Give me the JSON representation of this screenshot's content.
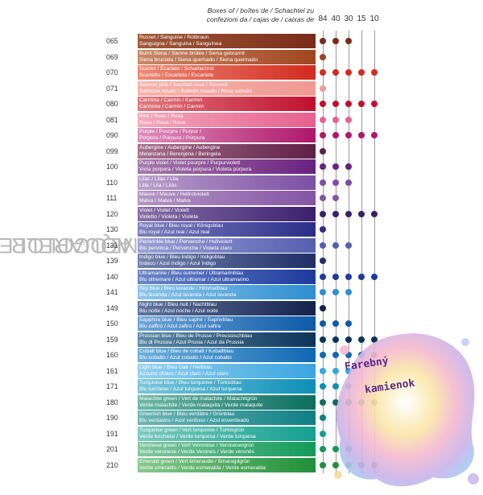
{
  "brand": {
    "name": "NEOCOLOR",
    "reg": "®",
    "suffix": " II AQUARELLE"
  },
  "header": {
    "line1": "Boxes of / boîtes de / Schachtel zu",
    "line2": "confezioni da / cajas de / caixas de"
  },
  "box_sizes": [
    "84",
    "40",
    "30",
    "15",
    "10"
  ],
  "watermark": {
    "line1": "Farebný",
    "line2": "kamienok"
  },
  "colors": [
    {
      "code": "065",
      "l1": "Russet / Sanguine / Rotbraun",
      "l2": "Sanguigna / Sanguina / Sanguínea",
      "c1": "#a05a3a",
      "c2": "#7a2b18",
      "boxes": [
        1,
        1,
        1,
        0,
        0
      ]
    },
    {
      "code": "069",
      "l1": "Burnt Siena / Sienne brûlée / Siena gebrannt",
      "l2": "Siena bruciata / Siena quemado / Siena queimado",
      "c1": "#c98a6a",
      "c2": "#a0451f",
      "boxes": [
        1,
        0,
        0,
        0,
        0
      ]
    },
    {
      "code": "070",
      "l1": "Scarlet / Écarlate / Scharlachrot",
      "l2": "Scarlatto / Escarlata / Escarlate",
      "c1": "#ec8a75",
      "c2": "#d32a20",
      "boxes": [
        1,
        1,
        1,
        1,
        1
      ]
    },
    {
      "code": "071",
      "l1": "Salmon pink / Saumon rosé / Rosarot",
      "l2": "Salmone rosato / Salmón rosado / Rosa salmão",
      "c1": "#f5b3ad",
      "c2": "#ef9a93",
      "boxes": [
        1,
        0,
        0,
        0,
        0
      ]
    },
    {
      "code": "080",
      "l1": "Carmine / Carmin / Karmin",
      "l2": "Carminio / Carmín / Carmin",
      "c1": "#e07a80",
      "c2": "#c0102e",
      "boxes": [
        1,
        1,
        1,
        1,
        1
      ]
    },
    {
      "code": "081",
      "l1": "Pink / Rose / Rosa",
      "l2": "Rosa / Rosa / Rosa",
      "c1": "#f2a8bd",
      "c2": "#e8608f",
      "boxes": [
        1,
        1,
        1,
        0,
        0
      ]
    },
    {
      "code": "090",
      "l1": "Purple / Pourpre / Purpur /",
      "l2": "Porpora / Púrpura / Púrpura",
      "c1": "#de8fbf",
      "c2": "#b0176a",
      "boxes": [
        1,
        1,
        1,
        1,
        1
      ]
    },
    {
      "code": "099",
      "l1": "Aubergine / Aubergine / Aubergine",
      "l2": "Melanzana / Berenjena / Beringela",
      "c1": "#a8718f",
      "c2": "#5e1f45",
      "boxes": [
        1,
        0,
        0,
        0,
        0
      ]
    },
    {
      "code": "100",
      "l1": "Purple violet / Violet pourpre / Purpurviolett",
      "l2": "Viola porpora / Violeta púrpura / Violeta púrpura",
      "c1": "#a77aad",
      "c2": "#6a2080",
      "boxes": [
        1,
        1,
        1,
        0,
        0
      ]
    },
    {
      "code": "110",
      "l1": "Lilac / Lilas / Lila",
      "l2": "Lilla / Lila / Lilás",
      "c1": "#b9a0cc",
      "c2": "#7c4fa3",
      "boxes": [
        1,
        1,
        1,
        0,
        0
      ]
    },
    {
      "code": "111",
      "l1": "Mauve / Mauve / Hellrotviolett",
      "l2": "Malva / Malva / Malva",
      "c1": "#b595c4",
      "c2": "#8455a5",
      "boxes": [
        1,
        1,
        0,
        0,
        0
      ]
    },
    {
      "code": "120",
      "l1": "Violet / Violet / Violett",
      "l2": "Violetto / Violeta / Violeta",
      "c1": "#8870a8",
      "c2": "#3b1f6e",
      "boxes": [
        1,
        1,
        1,
        1,
        1
      ]
    },
    {
      "code": "130",
      "l1": "Royal blue / Bleu royal / Königsblau",
      "l2": "Blu royal / Azul real / Azul real",
      "c1": "#7d82bf",
      "c2": "#2a2d88",
      "boxes": [
        1,
        0,
        0,
        0,
        0
      ]
    },
    {
      "code": "131",
      "l1": "Periwinkle blue / Pervenche / Hellviolett",
      "l2": "Blu pervinca / Pervenche / Violeta claro",
      "c1": "#9aa0d5",
      "c2": "#5560b0",
      "boxes": [
        1,
        1,
        1,
        0,
        0
      ]
    },
    {
      "code": "139",
      "l1": "Indigo blue / Bleu indigo / Indigoblau",
      "l2": "Indaco / Azul índigo / Azul índigo",
      "c1": "#7384b0",
      "c2": "#1f2f66",
      "boxes": [
        1,
        0,
        0,
        0,
        0
      ]
    },
    {
      "code": "140",
      "l1": "Ultramarine / Bleu outremer / Ultramarinblau",
      "l2": "Blu oltremare / Azul ultramar / Azul ultramarino",
      "c1": "#6b86c7",
      "c2": "#1d3a9e",
      "boxes": [
        1,
        1,
        1,
        1,
        1
      ]
    },
    {
      "code": "141",
      "l1": "Sky blue / Bleu lavande / Himmelblau",
      "l2": "Blu lavanda / Azul lavanda / Azul lavanda",
      "c1": "#8fc6ea",
      "c2": "#2d8fd0",
      "boxes": [
        1,
        1,
        1,
        0,
        0
      ]
    },
    {
      "code": "149",
      "l1": "Night blue / Bleu nuit / Nachtblau",
      "l2": "Blu notte / Azul noche / Azul noite",
      "c1": "#6076a0",
      "c2": "#14224d",
      "boxes": [
        1,
        0,
        0,
        0,
        0
      ]
    },
    {
      "code": "150",
      "l1": "Sapphire blue / Bleu saphir / Saphirblau",
      "l2": "Blu zaffiro / Azul zafiro / Azul safira",
      "c1": "#6fa5d8",
      "c2": "#0d5aa8",
      "boxes": [
        1,
        1,
        1,
        0,
        0
      ]
    },
    {
      "code": "159",
      "l1": "Prussian blue / Bleu de Prusse / Preussischblau",
      "l2": "Blu di Prussia / Azul Prusia / Azul da Prussia",
      "c1": "#5f8aa8",
      "c2": "#0c3358",
      "boxes": [
        1,
        1,
        1,
        1,
        1
      ]
    },
    {
      "code": "160",
      "l1": "Cobalt blue / Bleu de cobalt / Kobaltblau",
      "l2": "Blu cobalto / Azul cobalto / Azul cobalto",
      "c1": "#6fb0da",
      "c2": "#1068b3",
      "boxes": [
        1,
        1,
        1,
        1,
        1
      ]
    },
    {
      "code": "161",
      "l1": "Light blue / Bleu clair / Hellblau",
      "l2": "Azzurro chiaro / Azul claro / Azul claro",
      "c1": "#96d0ef",
      "c2": "#3aa6df",
      "boxes": [
        1,
        1,
        1,
        0,
        0
      ]
    },
    {
      "code": "171",
      "l1": "Turquoise blue / Bleu turquoise / Türkisblau",
      "l2": "Blu turchese / Azul turquesa / Azul turquesa",
      "c1": "#7cc7da",
      "c2": "#0d8eb8",
      "boxes": [
        1,
        1,
        1,
        0,
        0
      ]
    },
    {
      "code": "180",
      "l1": "Malachite green / Vert de malachite / Malachitgrün",
      "l2": "Verde malachite / Verde malaquita / Verde malaquite",
      "c1": "#6eb8a9",
      "c2": "#0b6e5e",
      "boxes": [
        1,
        1,
        1,
        1,
        1
      ]
    },
    {
      "code": "190",
      "l1": "Greenish blue / Bleu verdâtre / Grünblau",
      "l2": "Blu verdastro / Azul verdoso / Azul esverdeado",
      "c1": "#6fb7b8",
      "c2": "#0d7f85",
      "boxes": [
        1,
        0,
        0,
        0,
        0
      ]
    },
    {
      "code": "191",
      "l1": "Turquoise green / Vert turquoise / Türkisgrün",
      "l2": "Verde turchese / Verde turquesa / Verde turquesa",
      "c1": "#7ccbbf",
      "c2": "#12a08f",
      "boxes": [
        1,
        0,
        0,
        0,
        0
      ]
    },
    {
      "code": "201",
      "l1": "Veronese green / Vert Véronèse / Veronesergrün",
      "l2": "Verde veronese / Verde Veronés / Verde veronês",
      "c1": "#84c7a0",
      "c2": "#129a58",
      "boxes": [
        1,
        1,
        1,
        0,
        0
      ]
    },
    {
      "code": "210",
      "l1": "Emerald green / Vert émeraude / Smaragdgrün",
      "l2": "Verde smeraldo / Verde esmeralda / Verde esmeralda",
      "c1": "#89c98e",
      "c2": "#1f8f3a",
      "boxes": [
        1,
        1,
        1,
        1,
        1
      ]
    }
  ]
}
